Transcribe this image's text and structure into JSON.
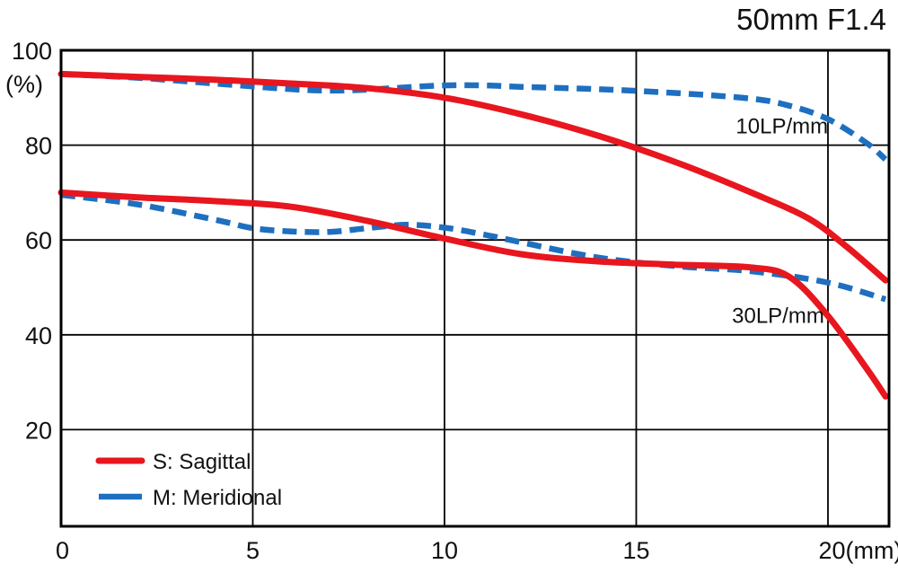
{
  "chart_data": {
    "type": "line",
    "title": "50mm F1.4",
    "y_unit_label": "(%)",
    "x_unit_label": "(mm)",
    "xlim": [
      0,
      21.6
    ],
    "ylim": [
      0,
      100
    ],
    "grid": true,
    "legend_position": "bottom-left",
    "x_ticks": [
      {
        "value": 0,
        "label": "0"
      },
      {
        "value": 5,
        "label": "5"
      },
      {
        "value": 10,
        "label": "10"
      },
      {
        "value": 15,
        "label": "15"
      },
      {
        "value": 20,
        "label": "20(mm)"
      }
    ],
    "y_ticks": [
      {
        "value": 100,
        "label": "100"
      },
      {
        "value": 80,
        "label": "80"
      },
      {
        "value": 60,
        "label": "60"
      },
      {
        "value": 40,
        "label": "40"
      },
      {
        "value": 20,
        "label": "20"
      }
    ],
    "legend": [
      {
        "label": "S: Sagittal",
        "color": "#e8161e",
        "dash": "solid"
      },
      {
        "label": "M: Meridional",
        "color": "#1f6fc0",
        "dash": "dashed"
      }
    ],
    "annotations": [
      {
        "text": "10LP/mm",
        "x": 18.8,
        "y": 82.5
      },
      {
        "text": "30LP/mm",
        "x": 18.7,
        "y": 42.5
      }
    ],
    "series": [
      {
        "name": "S: Sagittal",
        "group": "10LP/mm",
        "color": "#e8161e",
        "dash": "solid",
        "x": [
          0,
          2,
          4,
          6,
          8,
          10,
          12,
          14,
          16,
          18,
          19.5,
          20.5,
          21.5
        ],
        "y": [
          95,
          94.4,
          93.8,
          93,
          92,
          90,
          86.5,
          82,
          76.5,
          70,
          64.5,
          58.5,
          51.5
        ]
      },
      {
        "name": "M: Meridional",
        "group": "10LP/mm",
        "color": "#1f6fc0",
        "dash": "dashed",
        "x": [
          0,
          2,
          4,
          6,
          7,
          8,
          9,
          10,
          11,
          12,
          14,
          16,
          18,
          19,
          20,
          21,
          21.5
        ],
        "y": [
          95,
          94.2,
          93,
          91.8,
          91.5,
          91.7,
          92.2,
          92.6,
          92.6,
          92.3,
          91.8,
          91,
          89.8,
          88.3,
          85.5,
          80.5,
          77
        ]
      },
      {
        "name": "S: Sagittal",
        "group": "30LP/mm",
        "color": "#e8161e",
        "dash": "solid",
        "x": [
          0,
          2,
          4,
          6,
          8,
          10,
          12,
          14,
          16,
          18,
          19,
          20,
          21,
          21.5
        ],
        "y": [
          70,
          69,
          68.2,
          67,
          64,
          60.3,
          57,
          55.5,
          54.8,
          54.2,
          52.2,
          44,
          33,
          27
        ]
      },
      {
        "name": "M: Meridional",
        "group": "30LP/mm",
        "color": "#1f6fc0",
        "dash": "dashed",
        "x": [
          0,
          2,
          4,
          5,
          6,
          7,
          8,
          9,
          10,
          11,
          12,
          14,
          16,
          18,
          20,
          21.5
        ],
        "y": [
          69.5,
          67.5,
          64.3,
          62.5,
          61.8,
          61.7,
          62.5,
          63.2,
          62.6,
          61.2,
          59.5,
          56.3,
          54.5,
          53.4,
          51,
          47.5
        ]
      }
    ]
  }
}
